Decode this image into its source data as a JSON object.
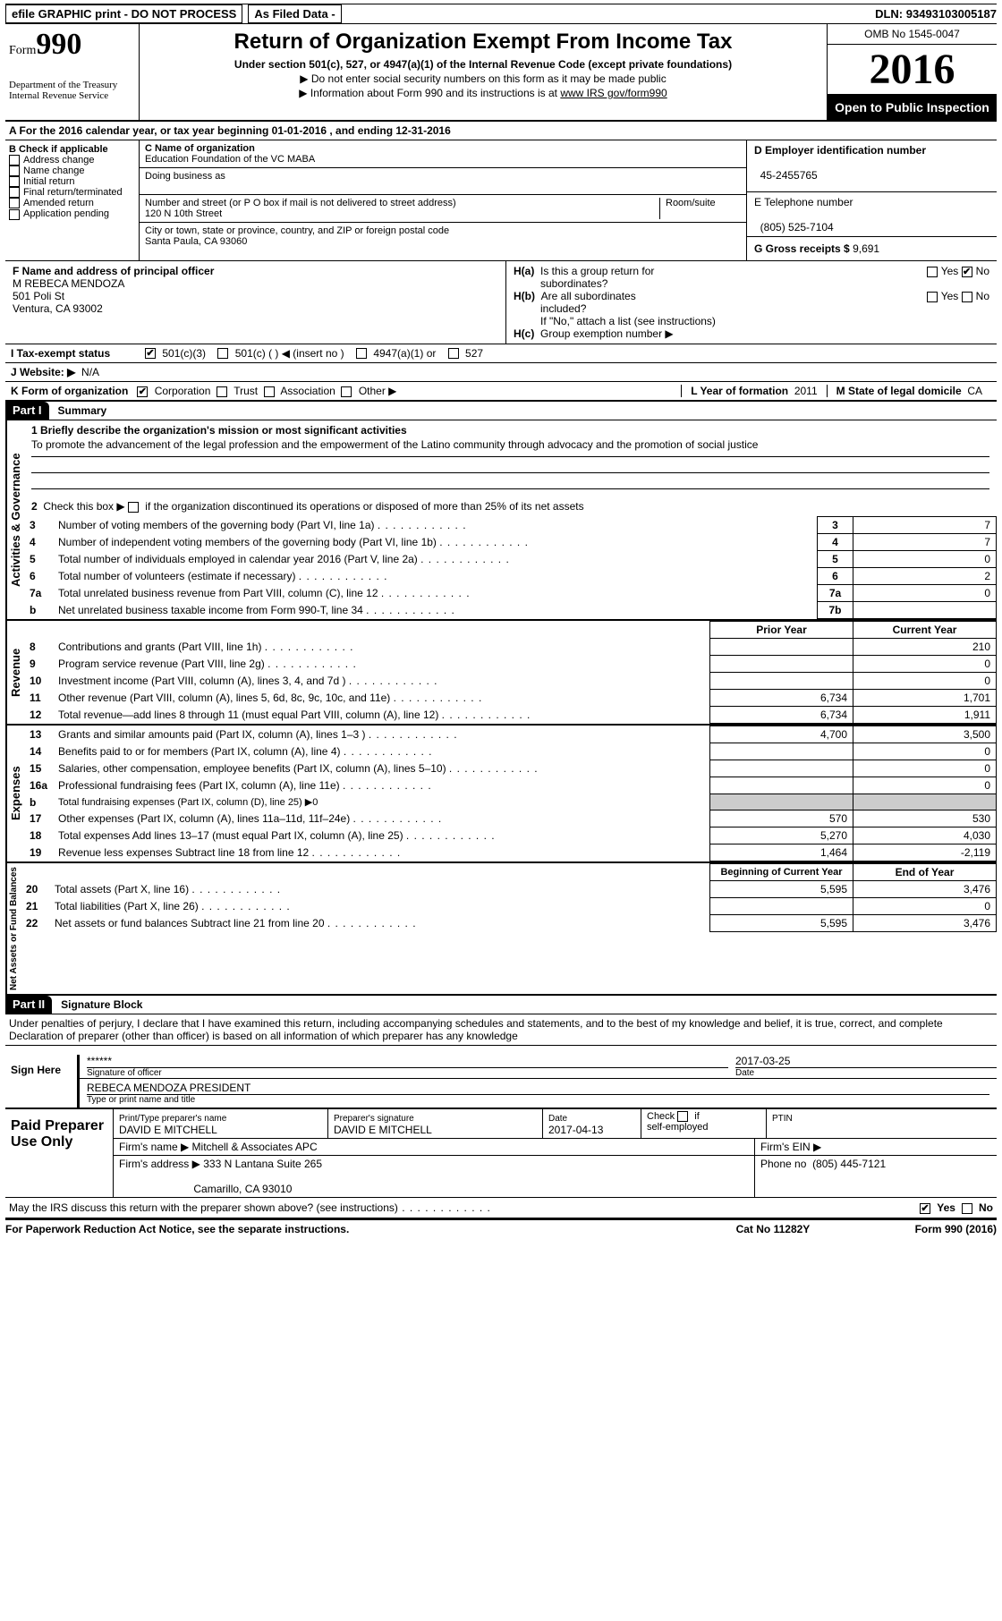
{
  "topbar": {
    "efile": "efile GRAPHIC print - DO NOT PROCESS",
    "asfiled": "As Filed Data -",
    "dln_label": "DLN:",
    "dln": "93493103005187"
  },
  "header": {
    "form_label": "Form",
    "form_number": "990",
    "dept": "Department of the Treasury\nInternal Revenue Service",
    "title": "Return of Organization Exempt From Income Tax",
    "subtitle": "Under section 501(c), 527, or 4947(a)(1) of the Internal Revenue Code (except private foundations)",
    "note1": "▶ Do not enter social security numbers on this form as it may be made public",
    "note2": "▶ Information about Form 990 and its instructions is at ",
    "note2_link": "www IRS gov/form990",
    "omb": "OMB No  1545-0047",
    "year": "2016",
    "inspection": "Open to Public Inspection"
  },
  "rowA": "A   For the 2016 calendar year, or tax year beginning 01-01-2016    , and ending 12-31-2016",
  "B": {
    "title": "B Check if applicable",
    "items": [
      "Address change",
      "Name change",
      "Initial return",
      "Final return/terminated",
      "Amended return",
      "Application pending"
    ]
  },
  "C": {
    "name_lbl": "C Name of organization",
    "name": "Education Foundation of the VC MABA",
    "dba_lbl": "Doing business as",
    "addr_lbl": "Number and street (or P O  box if mail is not delivered to street address)",
    "room_lbl": "Room/suite",
    "addr": "120 N 10th Street",
    "city_lbl": "City or town, state or province, country, and ZIP or foreign postal code",
    "city": "Santa Paula, CA   93060"
  },
  "D": {
    "lbl": "D Employer identification number",
    "val": "45-2455765"
  },
  "E": {
    "lbl": "E Telephone number",
    "val": "(805) 525-7104"
  },
  "G": {
    "lbl": "G Gross receipts $",
    "val": "9,691"
  },
  "F": {
    "lbl": "F  Name and address of principal officer",
    "name": "M REBECA MENDOZA",
    "street": "501 Poli St",
    "city": "Ventura, CA   93002"
  },
  "H": {
    "a": "H(a)  Is this a group return for subordinates?",
    "b": "H(b)  Are all subordinates included?",
    "b_note": "If \"No,\" attach a list  (see instructions)",
    "c": "H(c)  Group exemption number ▶"
  },
  "I": {
    "lbl": "I   Tax-exempt status",
    "o1": "501(c)(3)",
    "o2": "501(c) (    ) ◀ (insert no )",
    "o3": "4947(a)(1) or",
    "o4": "527"
  },
  "J": {
    "lbl": "J   Website: ▶",
    "val": "N/A"
  },
  "K": {
    "lbl": "K Form of organization",
    "o": [
      "Corporation",
      "Trust",
      "Association",
      "Other ▶"
    ]
  },
  "L": {
    "lbl": "L Year of formation",
    "val": "2011"
  },
  "M": {
    "lbl": "M State of legal domicile",
    "val": "CA"
  },
  "partI": {
    "title": "Part I",
    "title2": "Summary",
    "line1": "1  Briefly describe the organization's mission or most significant activities",
    "mission": "To promote the advancement of the legal profession and the empowerment of the Latino community through advocacy and the promotion of social justice",
    "line2": "2  Check this box ▶         if the organization discontinued its operations or disposed of more than 25% of its net assets",
    "gov_rows": [
      {
        "n": "3",
        "t": "Number of voting members of the governing body (Part VI, line 1a)",
        "c": "3",
        "v": "7"
      },
      {
        "n": "4",
        "t": "Number of independent voting members of the governing body (Part VI, line 1b)",
        "c": "4",
        "v": "7"
      },
      {
        "n": "5",
        "t": "Total number of individuals employed in calendar year 2016 (Part V, line 2a)",
        "c": "5",
        "v": "0"
      },
      {
        "n": "6",
        "t": "Total number of volunteers (estimate if necessary)",
        "c": "6",
        "v": "2"
      },
      {
        "n": "7a",
        "t": "Total unrelated business revenue from Part VIII, column (C), line 12",
        "c": "7a",
        "v": "0"
      },
      {
        "n": "b",
        "t": "Net unrelated business taxable income from Form 990-T, line 34",
        "c": "7b",
        "v": ""
      }
    ],
    "col_prior": "Prior Year",
    "col_current": "Current Year",
    "rev_rows": [
      {
        "n": "8",
        "t": "Contributions and grants (Part VIII, line 1h)",
        "p": "",
        "c": "210"
      },
      {
        "n": "9",
        "t": "Program service revenue (Part VIII, line 2g)",
        "p": "",
        "c": "0"
      },
      {
        "n": "10",
        "t": "Investment income (Part VIII, column (A), lines 3, 4, and 7d )",
        "p": "",
        "c": "0"
      },
      {
        "n": "11",
        "t": "Other revenue (Part VIII, column (A), lines 5, 6d, 8c, 9c, 10c, and 11e)",
        "p": "6,734",
        "c": "1,701"
      },
      {
        "n": "12",
        "t": "Total revenue—add lines 8 through 11 (must equal Part VIII, column (A), line 12)",
        "p": "6,734",
        "c": "1,911"
      }
    ],
    "exp_rows": [
      {
        "n": "13",
        "t": "Grants and similar amounts paid (Part IX, column (A), lines 1–3 )",
        "p": "4,700",
        "c": "3,500"
      },
      {
        "n": "14",
        "t": "Benefits paid to or for members (Part IX, column (A), line 4)",
        "p": "",
        "c": "0"
      },
      {
        "n": "15",
        "t": "Salaries, other compensation, employee benefits (Part IX, column (A), lines 5–10)",
        "p": "",
        "c": "0"
      },
      {
        "n": "16a",
        "t": "Professional fundraising fees (Part IX, column (A), line 11e)",
        "p": "",
        "c": "0"
      },
      {
        "n": "b",
        "t": "Total fundraising expenses (Part IX, column (D), line 25) ▶0",
        "p": "—",
        "c": "—"
      },
      {
        "n": "17",
        "t": "Other expenses (Part IX, column (A), lines 11a–11d, 11f–24e)",
        "p": "570",
        "c": "530"
      },
      {
        "n": "18",
        "t": "Total expenses  Add lines 13–17 (must equal Part IX, column (A), line 25)",
        "p": "5,270",
        "c": "4,030"
      },
      {
        "n": "19",
        "t": "Revenue less expenses  Subtract line 18 from line 12",
        "p": "1,464",
        "c": "-2,119"
      }
    ],
    "col_begin": "Beginning of Current Year",
    "col_end": "End of Year",
    "net_rows": [
      {
        "n": "20",
        "t": "Total assets (Part X, line 16)",
        "p": "5,595",
        "c": "3,476"
      },
      {
        "n": "21",
        "t": "Total liabilities (Part X, line 26)",
        "p": "",
        "c": "0"
      },
      {
        "n": "22",
        "t": "Net assets or fund balances  Subtract line 21 from line 20",
        "p": "5,595",
        "c": "3,476"
      }
    ],
    "sb_gov": "Activities & Governance",
    "sb_rev": "Revenue",
    "sb_exp": "Expenses",
    "sb_net": "Net Assets or Fund Balances"
  },
  "partII": {
    "title": "Part II",
    "title2": "Signature Block",
    "decl": "Under penalties of perjury, I declare that I have examined this return, including accompanying schedules and statements, and to the best of my knowledge and belief, it is true, correct, and complete  Declaration of preparer (other than officer) is based on all information of which preparer has any knowledge",
    "sign_here": "Sign Here",
    "sig_of_officer": "Signature of officer",
    "sig_stars": "******",
    "sig_date": "2017-03-25",
    "date_lbl": "Date",
    "officer_name": "REBECA MENDOZA PRESIDENT",
    "officer_name_lbl": "Type or print name and title",
    "paid": "Paid Preparer Use Only",
    "prep_name_lbl": "Print/Type preparer's name",
    "prep_name": "DAVID E MITCHELL",
    "prep_sig_lbl": "Preparer's signature",
    "prep_sig": "DAVID E MITCHELL",
    "prep_date_lbl": "Date",
    "prep_date": "2017-04-13",
    "self_emp": "Check         if self-employed",
    "ptin": "PTIN",
    "firm_name_lbl": "Firm's name     ▶",
    "firm_name": "Mitchell & Associates APC",
    "firm_ein": "Firm's EIN ▶",
    "firm_addr_lbl": "Firm's address ▶",
    "firm_addr": "333 N Lantana Suite 265",
    "firm_city": "Camarillo, CA   93010",
    "firm_phone_lbl": "Phone no",
    "firm_phone": "(805) 445-7121",
    "discuss": "May the IRS discuss this return with the preparer shown above? (see instructions)"
  },
  "footer": {
    "left": "For Paperwork Reduction Act Notice, see the separate instructions.",
    "mid": "Cat No  11282Y",
    "right": "Form 990 (2016)"
  }
}
